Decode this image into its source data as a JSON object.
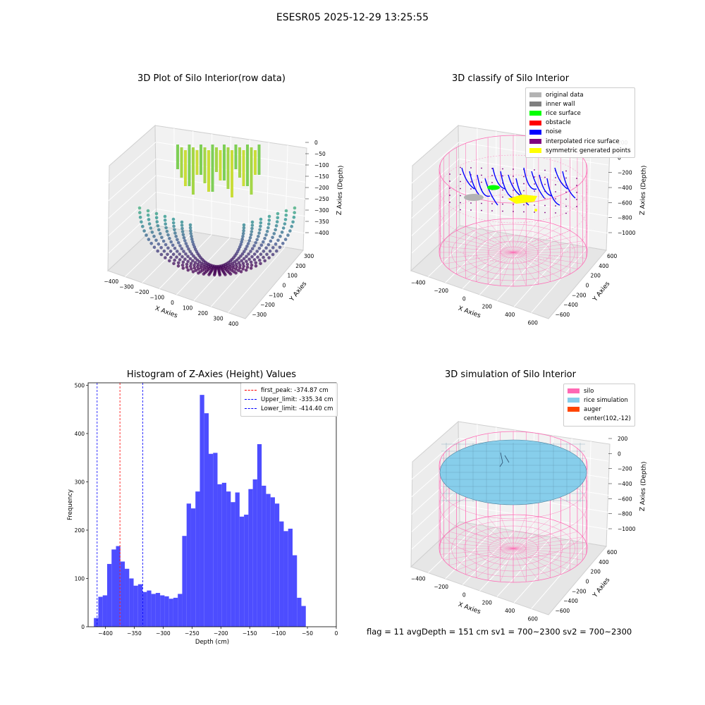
{
  "suptitle": "ESESR05 2025-12-29 13:25:55",
  "status_line": "flag = 11  avgDepth = 151 cm  sv1 = 700~2300  sv2 = 700~2300",
  "chart_data": [
    {
      "type": "scatter",
      "projection": "3d",
      "title": "3D Plot of Silo Interior(row data)",
      "xlabel": "X Axies",
      "ylabel": "Y Axies",
      "zlabel": "Z Axies (Depth)",
      "xticks": [
        "−400",
        "−300",
        "−200",
        "−100",
        "0",
        "100",
        "200",
        "300",
        "400"
      ],
      "yticks": [
        "−300",
        "−200",
        "−100",
        "0",
        "100",
        "200",
        "300"
      ],
      "zticks": [
        "0",
        "−50",
        "−100",
        "−150",
        "−200",
        "−250",
        "−300",
        "−350",
        "−400"
      ],
      "xlim": [
        -420,
        420
      ],
      "ylim": [
        -320,
        320
      ],
      "zlim": [
        -420,
        0
      ],
      "colormap": "viridis",
      "grid": true
    },
    {
      "type": "scatter",
      "projection": "3d",
      "title": "3D classify of Silo Interior",
      "xlabel": "X Axies",
      "ylabel": "Y Axies",
      "zlabel": "Z Axies (Depth)",
      "xticks": [
        "−400",
        "−200",
        "0",
        "200",
        "400",
        "600"
      ],
      "yticks": [
        "−600",
        "−400",
        "−200",
        "0",
        "200",
        "400",
        "600"
      ],
      "zticks": [
        "200",
        "0",
        "−200",
        "−400",
        "−600",
        "−800",
        "−1000"
      ],
      "xlim": [
        -560,
        760
      ],
      "ylim": [
        -660,
        660
      ],
      "zlim": [
        -1000,
        300
      ],
      "legend_position": "top-right",
      "series": [
        {
          "name": "original data",
          "color": "#b3b3b3"
        },
        {
          "name": "inner wall",
          "color": "#808080"
        },
        {
          "name": "rice surface",
          "color": "#00ff00"
        },
        {
          "name": "obstacle",
          "color": "#ff0000"
        },
        {
          "name": "noise",
          "color": "#0000ff"
        },
        {
          "name": "interpolated rice surface",
          "color": "#800080"
        },
        {
          "name": "symmetric generated points",
          "color": "#ffff00"
        }
      ],
      "silo_wireframe_color": "#ff69b4",
      "grid": true
    },
    {
      "type": "bar",
      "title": "Histogram of Z-Axies (Height) Values",
      "xlabel": "Depth (cm)",
      "ylabel": "Frequency",
      "xlim": [
        -430,
        0
      ],
      "ylim": [
        0,
        505
      ],
      "xticks": [
        -400,
        -350,
        -300,
        -250,
        -200,
        -150,
        -100,
        -50,
        0
      ],
      "yticks": [
        0,
        100,
        200,
        300,
        400,
        500
      ],
      "bin_start": -420,
      "bin_width": 7.65,
      "values": [
        18,
        62,
        65,
        130,
        160,
        167,
        135,
        120,
        100,
        85,
        88,
        72,
        75,
        68,
        70,
        65,
        63,
        58,
        60,
        68,
        188,
        255,
        245,
        280,
        480,
        442,
        358,
        360,
        295,
        298,
        280,
        258,
        278,
        228,
        232,
        285,
        305,
        378,
        292,
        275,
        268,
        255,
        218,
        198,
        203,
        148,
        60,
        43
      ],
      "bar_color": "#4d4dff",
      "vlines": [
        {
          "name": "first_peak: -374.87 cm",
          "x": -374.87,
          "color": "#ff0000"
        },
        {
          "name": "Upper_limit: -335.34 cm",
          "x": -335.34,
          "color": "#0000ff"
        },
        {
          "name": "Lower_limit: -414.40 cm",
          "x": -414.4,
          "color": "#0000ff"
        }
      ],
      "legend_position": "top-right"
    },
    {
      "type": "surface",
      "projection": "3d",
      "title": "3D simulation of Silo Interior",
      "xlabel": "X Axies",
      "ylabel": "Y Axies",
      "zlabel": "Z Axies (Depth)",
      "xticks": [
        "−400",
        "−200",
        "0",
        "200",
        "400",
        "600"
      ],
      "yticks": [
        "−600",
        "−400",
        "−200",
        "0",
        "200",
        "400",
        "600"
      ],
      "zticks": [
        "200",
        "0",
        "−200",
        "−400",
        "−600",
        "−800",
        "−1000"
      ],
      "xlim": [
        -560,
        760
      ],
      "ylim": [
        -660,
        660
      ],
      "zlim": [
        -1000,
        300
      ],
      "legend_position": "top-right",
      "series": [
        {
          "name": "silo",
          "color": "#ff69b4"
        },
        {
          "name": "rice simulation",
          "color": "#87ceeb"
        },
        {
          "name": "auger",
          "color": "#ff4500"
        },
        {
          "name": "center(102,-12)",
          "color": ""
        }
      ],
      "grid": true
    }
  ]
}
